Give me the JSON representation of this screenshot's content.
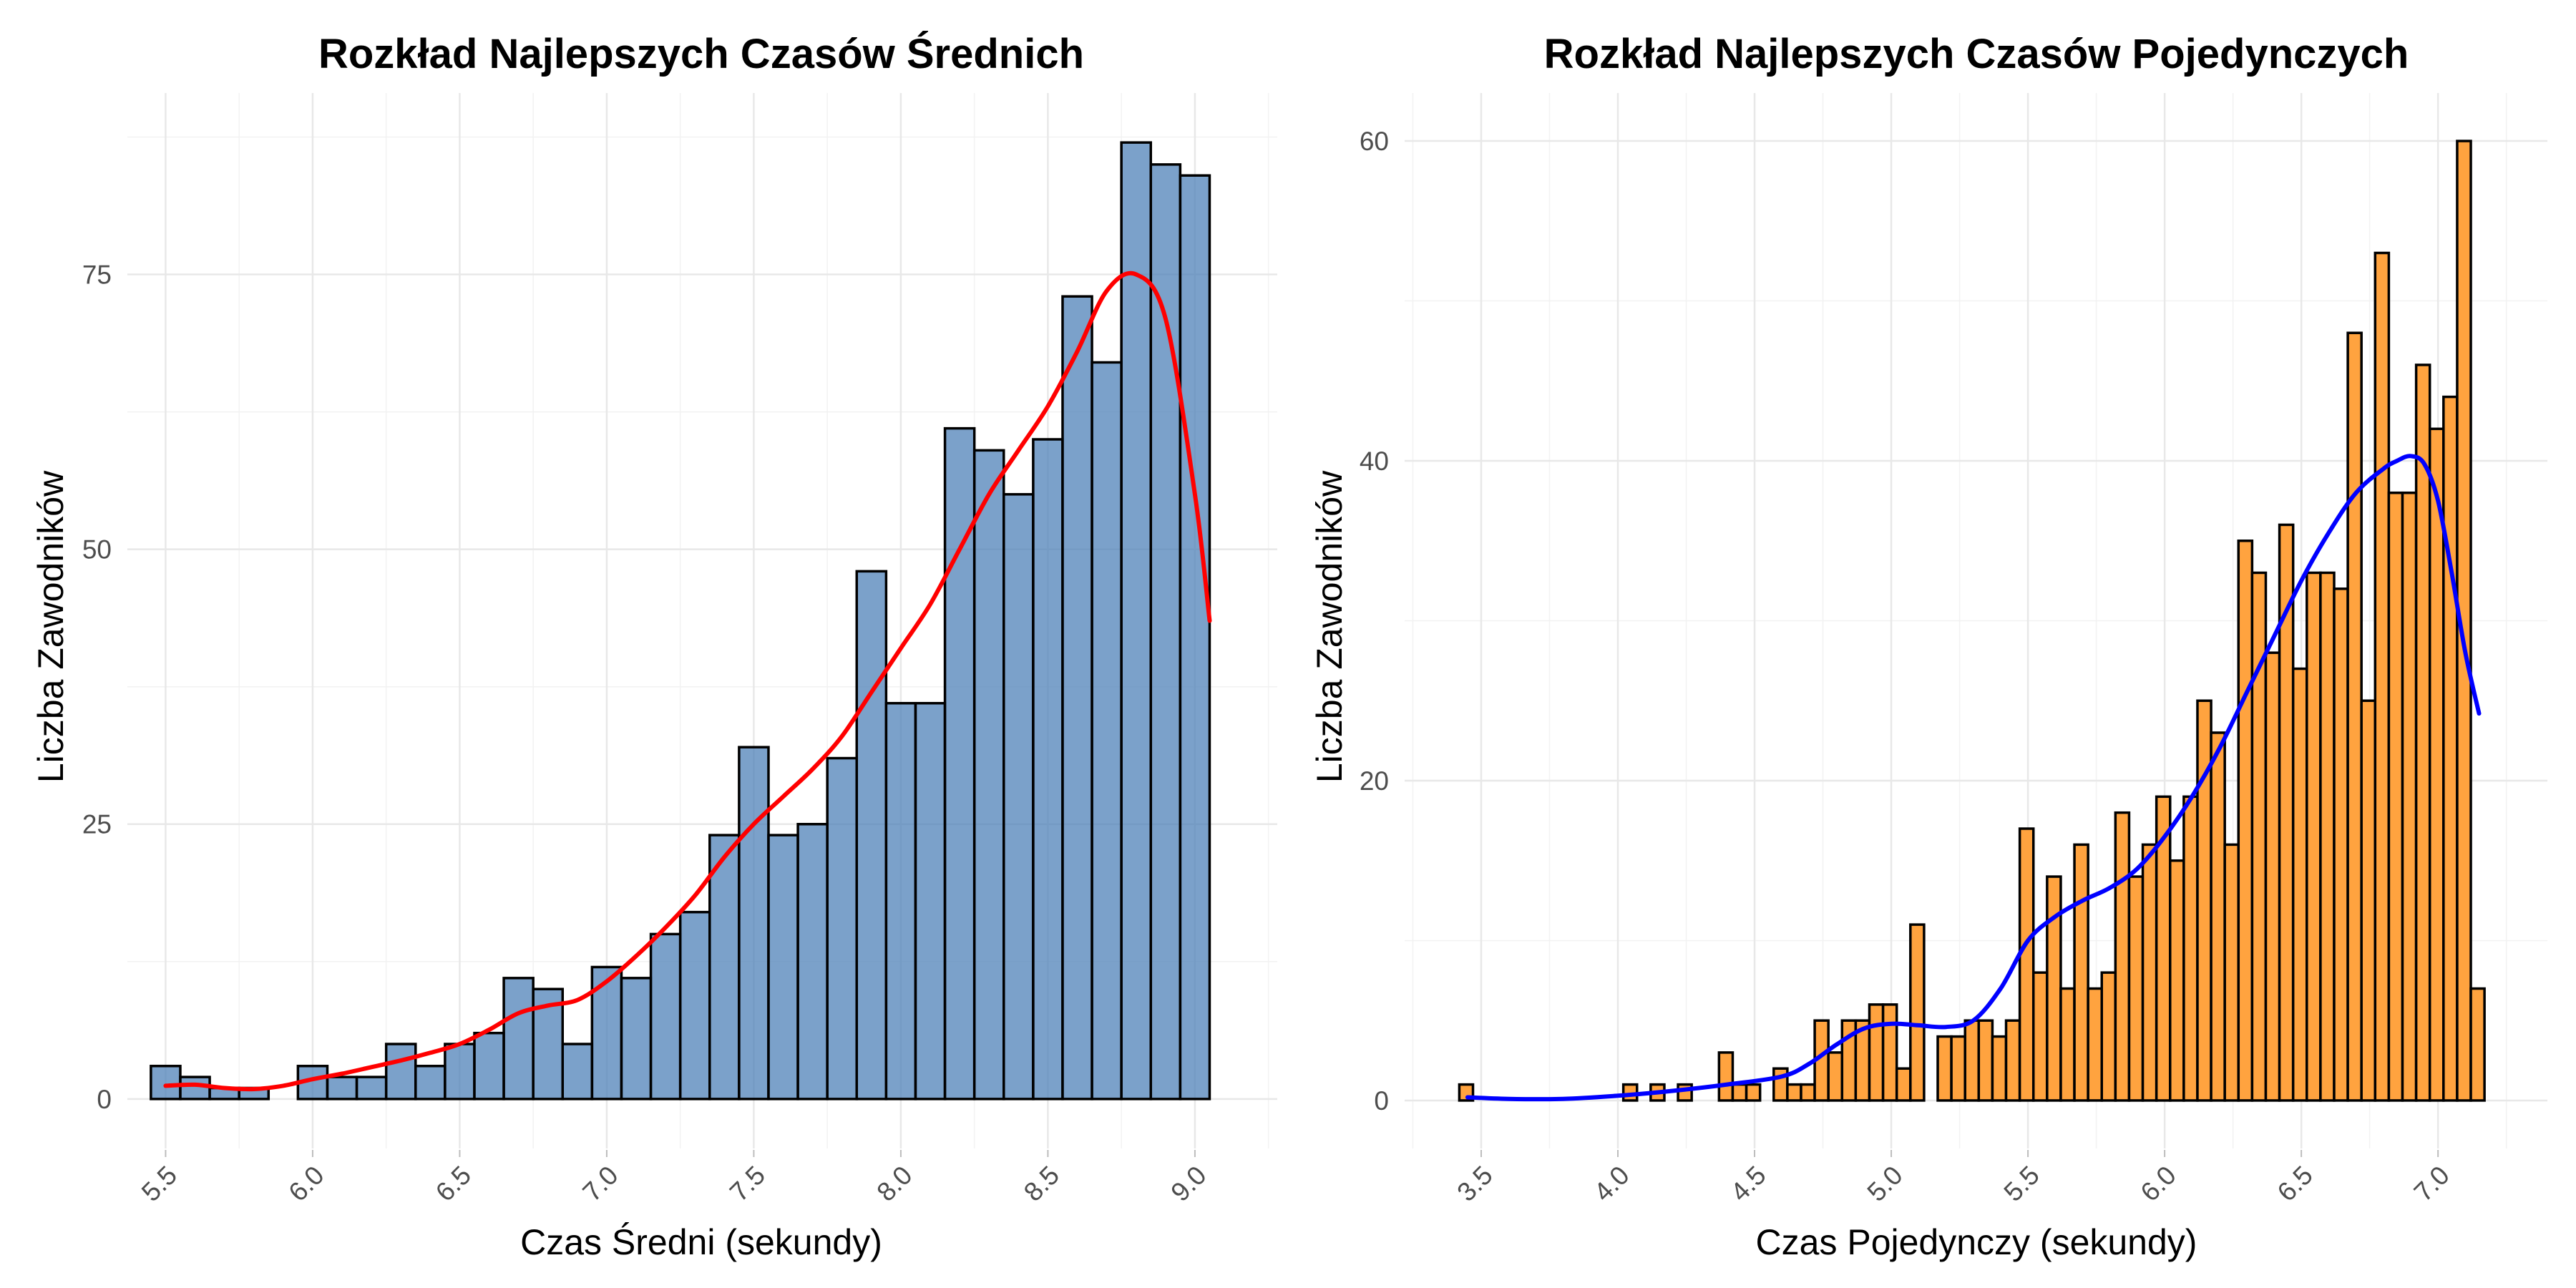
{
  "chart_data": [
    {
      "type": "histogram",
      "title": "Rozkład Najlepszych Czasów Średnich",
      "xlabel": "Czas Średni (sekundy)",
      "ylabel": "Liczba Zawodników",
      "xlim": [
        5.37,
        9.28
      ],
      "ylim": [
        -4.5,
        91.5
      ],
      "x_ticks": [
        5.5,
        6.0,
        6.5,
        7.0,
        7.5,
        8.0,
        8.5,
        9.0
      ],
      "x_tick_labels": [
        "5.5",
        "6.0",
        "6.5",
        "7.0",
        "7.5",
        "8.0",
        "8.5",
        "9.0"
      ],
      "y_ticks": [
        0,
        25,
        50,
        75
      ],
      "y_tick_labels": [
        "0",
        "25",
        "50",
        "75"
      ],
      "grid": true,
      "legend": "none",
      "bar_fill": "#4F81B8",
      "bar_opacity": 0.75,
      "bar_edge": "#000000",
      "density_color": "#FF0000",
      "bins": {
        "start": 5.45,
        "width": 0.1,
        "counts": [
          3,
          2,
          1,
          1,
          0,
          3,
          2,
          2,
          5,
          3,
          5,
          6,
          11,
          10,
          5,
          12,
          11,
          15,
          17,
          24,
          32,
          24,
          25,
          31,
          48,
          36,
          36,
          61,
          59,
          55,
          60,
          73,
          67,
          87,
          85,
          84
        ]
      },
      "density_curve": {
        "x": [
          5.5,
          5.6,
          5.7,
          5.8,
          5.9,
          6.0,
          6.1,
          6.2,
          6.3,
          6.4,
          6.5,
          6.6,
          6.7,
          6.8,
          6.9,
          7.0,
          7.1,
          7.2,
          7.3,
          7.4,
          7.5,
          7.6,
          7.7,
          7.8,
          7.9,
          8.0,
          8.1,
          8.2,
          8.3,
          8.4,
          8.5,
          8.6,
          8.7,
          8.8,
          8.9,
          9.0,
          9.05
        ],
        "y": [
          1.2,
          1.3,
          1.0,
          0.9,
          1.2,
          1.8,
          2.3,
          2.9,
          3.5,
          4.2,
          5.0,
          6.3,
          7.8,
          8.5,
          9.0,
          10.7,
          13.0,
          15.6,
          18.5,
          22.0,
          25.0,
          27.5,
          30.0,
          33.0,
          37.0,
          41.0,
          45.0,
          50.0,
          55.0,
          59.0,
          63.0,
          68.0,
          73.5,
          75.0,
          71.0,
          55.0,
          43.5
        ]
      }
    },
    {
      "type": "histogram",
      "title": "Rozkład Najlepszych Czasów Pojedynczych",
      "xlabel": "Czas Pojedynczy (sekundy)",
      "ylabel": "Liczba Zawodników",
      "xlim": [
        3.22,
        7.4
      ],
      "ylim": [
        -3.0,
        63.0
      ],
      "x_ticks": [
        3.5,
        4.0,
        4.5,
        5.0,
        5.5,
        6.0,
        6.5,
        7.0
      ],
      "x_tick_labels": [
        "3.5",
        "4.0",
        "4.5",
        "5.0",
        "5.5",
        "6.0",
        "6.5",
        "7.0"
      ],
      "y_ticks": [
        0,
        20,
        40,
        60
      ],
      "y_tick_labels": [
        "0",
        "20",
        "40",
        "60"
      ],
      "grid": true,
      "legend": "none",
      "bar_fill": "#FFA33F",
      "bar_opacity": 1,
      "bar_edge": "#000000",
      "density_color": "#0000FF",
      "bins": {
        "start": 3.42,
        "width": 0.05,
        "counts": [
          1,
          0,
          0,
          0,
          0,
          0,
          0,
          0,
          0,
          0,
          0,
          0,
          1,
          0,
          1,
          0,
          1,
          0,
          0,
          3,
          1,
          1,
          0,
          2,
          1,
          1,
          5,
          3,
          5,
          5,
          6,
          6,
          2,
          11,
          0,
          4,
          4,
          5,
          5,
          4,
          5,
          17,
          8,
          14,
          7,
          16,
          7,
          8,
          18,
          14,
          16,
          19,
          15,
          19,
          25,
          23,
          16,
          35,
          33,
          28,
          36,
          27,
          33,
          33,
          32,
          48,
          25,
          53,
          38,
          38,
          46,
          42,
          44,
          60,
          7
        ]
      },
      "density_curve": {
        "x": [
          3.45,
          3.6,
          3.8,
          4.0,
          4.2,
          4.4,
          4.6,
          4.7,
          4.8,
          4.9,
          5.0,
          5.1,
          5.2,
          5.3,
          5.4,
          5.5,
          5.6,
          5.7,
          5.8,
          5.9,
          6.0,
          6.1,
          6.2,
          6.3,
          6.4,
          6.5,
          6.6,
          6.7,
          6.8,
          6.85,
          6.9,
          6.95,
          7.0,
          7.05,
          7.1,
          7.15
        ],
        "y": [
          0.2,
          0.1,
          0.1,
          0.3,
          0.6,
          1.0,
          1.5,
          2.3,
          3.5,
          4.5,
          4.8,
          4.7,
          4.6,
          5.0,
          7.0,
          10.0,
          11.5,
          12.5,
          13.3,
          14.5,
          16.5,
          19.0,
          22.0,
          25.5,
          29.0,
          32.5,
          35.5,
          38.0,
          39.5,
          40.0,
          40.3,
          39.8,
          37.5,
          33.0,
          28.0,
          24.2
        ]
      }
    }
  ]
}
